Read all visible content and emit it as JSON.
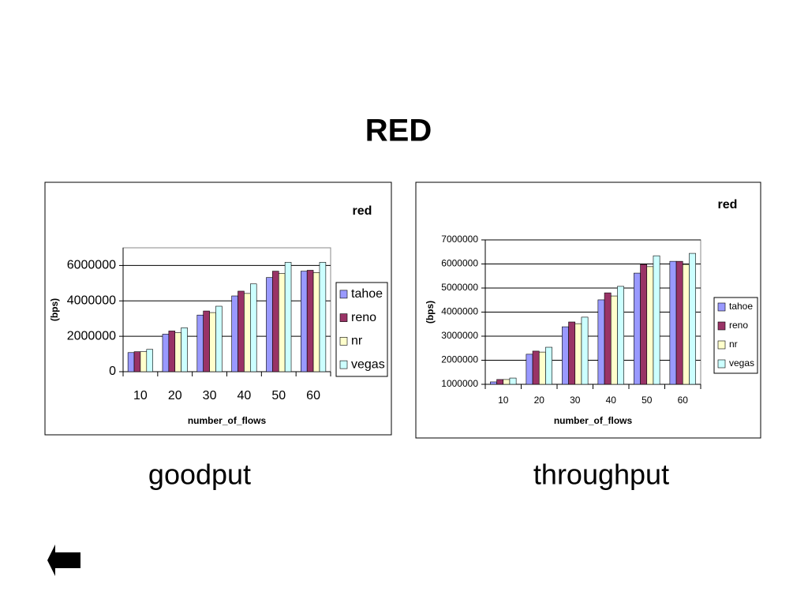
{
  "slide": {
    "title": "RED",
    "captions": [
      "goodput",
      "throughput"
    ]
  },
  "chart_data": [
    {
      "type": "bar",
      "title": "red",
      "x_label": "number_of_flows",
      "y_label": "(bps)",
      "categories": [
        "10",
        "20",
        "30",
        "40",
        "50",
        "60"
      ],
      "series": [
        {
          "name": "tahoe",
          "color": "#9999ff",
          "values": [
            1080000,
            2120000,
            3200000,
            4280000,
            5320000,
            5680000
          ]
        },
        {
          "name": "reno",
          "color": "#993366",
          "values": [
            1130000,
            2300000,
            3430000,
            4550000,
            5680000,
            5730000
          ]
        },
        {
          "name": "nr",
          "color": "#ffffcc",
          "values": [
            1130000,
            2200000,
            3340000,
            4420000,
            5550000,
            5600000
          ]
        },
        {
          "name": "vegas",
          "color": "#ccffff",
          "values": [
            1260000,
            2480000,
            3700000,
            4960000,
            6180000,
            6180000
          ]
        }
      ],
      "ylim": [
        0,
        7000000
      ],
      "yticks": [
        0,
        2000000,
        4000000,
        6000000
      ],
      "grid": true,
      "legend": "right"
    },
    {
      "type": "bar",
      "title": "red",
      "x_label": "number_of_flows",
      "y_label": "(bps)",
      "categories": [
        "10",
        "20",
        "30",
        "40",
        "50",
        "60"
      ],
      "series": [
        {
          "name": "tahoe",
          "color": "#9999ff",
          "values": [
            1100000,
            2250000,
            3390000,
            4510000,
            5620000,
            6110000
          ]
        },
        {
          "name": "reno",
          "color": "#993366",
          "values": [
            1200000,
            2380000,
            3590000,
            4800000,
            5980000,
            6110000
          ]
        },
        {
          "name": "nr",
          "color": "#ffffcc",
          "values": [
            1200000,
            2340000,
            3520000,
            4670000,
            5890000,
            5980000
          ]
        },
        {
          "name": "vegas",
          "color": "#ccffff",
          "values": [
            1260000,
            2540000,
            3790000,
            5070000,
            6340000,
            6440000
          ]
        }
      ],
      "ylim": [
        1000000,
        7000000
      ],
      "yticks": [
        1000000,
        2000000,
        3000000,
        4000000,
        5000000,
        6000000,
        7000000
      ],
      "grid": true,
      "legend": "right"
    }
  ]
}
